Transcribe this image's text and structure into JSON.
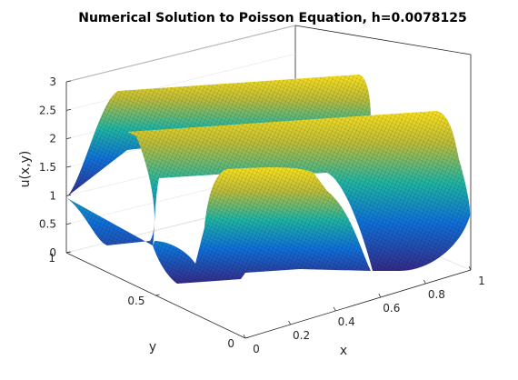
{
  "chart_data": {
    "type": "surface",
    "title": "Numerical Solution to Poisson Equation, h=0.0078125",
    "xlabel": "x",
    "ylabel": "y",
    "zlabel": "u(x,y)",
    "xlim": [
      0,
      1
    ],
    "ylim": [
      0,
      1
    ],
    "zlim": [
      0,
      3
    ],
    "x_ticks": [
      "0",
      "0.2",
      "0.4",
      "0.6",
      "0.8",
      "1"
    ],
    "y_ticks": [
      "0",
      "0.5",
      "1"
    ],
    "z_ticks": [
      "0",
      "0.5",
      "1",
      "1.5",
      "2",
      "2.5",
      "3"
    ],
    "grid": true,
    "colormap": "parula",
    "surface_description": "Three ridges parallel to the x-axis: a tall ridge at y≈0.85 reaching u≈3, a middle ridge at y≈0.5 reaching u≈2.6, and a shorter plateau near y≈0.25 for x≈0.2–0.55 reaching u≈2.2; boundary value u=1 along x=0 edge.",
    "ridges": [
      {
        "y_center": 0.85,
        "x_range": [
          0.1,
          1.0
        ],
        "peak": 3.0
      },
      {
        "y_center": 0.5,
        "x_range": [
          0.1,
          1.0
        ],
        "peak": 2.6
      },
      {
        "y_center": 0.22,
        "x_range": [
          0.2,
          0.55
        ],
        "peak": 2.2
      }
    ]
  },
  "colors": {
    "low": "#352a87",
    "mid": "#1fb4a4",
    "high": "#f9fb0e",
    "box": "#262626",
    "grid": "#e6e6e6"
  }
}
